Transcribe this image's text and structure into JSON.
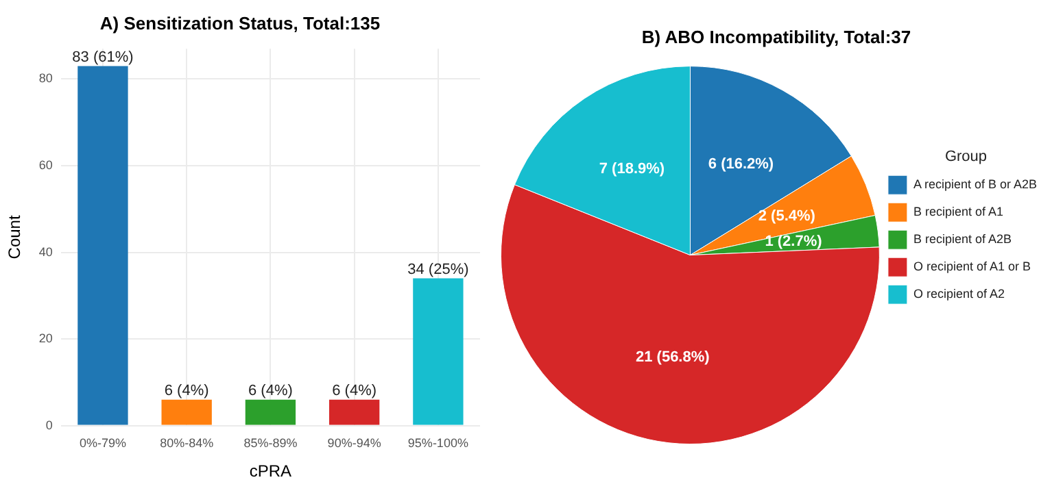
{
  "chart_data": [
    {
      "type": "bar",
      "title": "A) Sensitization Status, Total:135",
      "xlabel": "cPRA",
      "ylabel": "Count",
      "categories": [
        "0%-79%",
        "80%-84%",
        "85%-89%",
        "90%-94%",
        "95%-100%"
      ],
      "values": [
        83,
        6,
        6,
        6,
        34
      ],
      "colors": [
        "#1f77b4",
        "#ff7f0e",
        "#2ca02c",
        "#d62728",
        "#17becf"
      ],
      "value_labels": [
        "83 (61%)",
        "6 (4%)",
        "6 (4%)",
        "6 (4%)",
        "34 (25%)"
      ],
      "ylim": [
        0,
        87
      ],
      "yticks": [
        0,
        20,
        40,
        60,
        80
      ],
      "grid": true,
      "legend": false
    },
    {
      "type": "pie",
      "title": "B) ABO Incompatibility, Total:37",
      "legend_title": "Group",
      "categories": [
        "A recipient of B or A2B",
        "B recipient of A1",
        "B recipient of A2B",
        "O recipient of A1 or B",
        "O recipient of A2"
      ],
      "values": [
        6,
        2,
        1,
        21,
        7
      ],
      "colors": [
        "#1f77b4",
        "#ff7f0e",
        "#2ca02c",
        "#d62728",
        "#17becf"
      ],
      "value_labels": [
        "6 (16.2%)",
        "2 (5.4%)",
        "1 (2.7%)",
        "21 (56.8%)",
        "7 (18.9%)"
      ],
      "legend": "right"
    }
  ]
}
